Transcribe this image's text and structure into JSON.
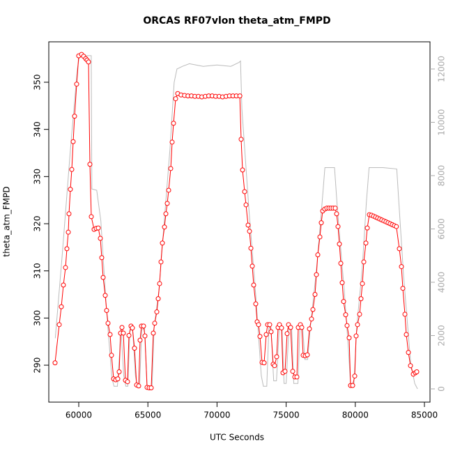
{
  "chart_data": {
    "type": "line",
    "title": "ORCAS RF07vlon theta_atm_FMPD",
    "xlabel": "UTC Seconds",
    "ylabel": "theta_atm_FMPD",
    "xlim": [
      57833,
      85403
    ],
    "ylim": [
      282.17,
      358.57
    ],
    "y2lim": [
      -497,
      13020
    ],
    "xticks": [
      60000,
      65000,
      70000,
      75000,
      80000,
      85000
    ],
    "yticks": [
      290,
      300,
      310,
      320,
      330,
      340,
      350
    ],
    "y2ticks": [
      0,
      2000,
      4000,
      6000,
      8000,
      10000,
      12000
    ],
    "series": [
      {
        "color": "#ff0000",
        "marker": "circle",
        "x": [
          58286,
          58589,
          58740,
          58891,
          59042,
          59143,
          59244,
          59294,
          59395,
          59496,
          59597,
          59698,
          59849,
          60000,
          60202,
          60353,
          60504,
          60605,
          60706,
          60806,
          60907,
          61109,
          61260,
          61411,
          61562,
          61663,
          61764,
          61915,
          62016,
          62117,
          62268,
          62369,
          62520,
          62671,
          62823,
          62923,
          63024,
          63125,
          63226,
          63377,
          63528,
          63629,
          63780,
          63881,
          64032,
          64183,
          64335,
          64435,
          64536,
          64687,
          64788,
          64940,
          65091,
          65242,
          65393,
          65494,
          65645,
          65746,
          65847,
          65948,
          66048,
          66199,
          66300,
          66401,
          66502,
          66653,
          66754,
          66855,
          67006,
          67157,
          67400,
          67650,
          67900,
          68150,
          68400,
          68650,
          68900,
          69150,
          69400,
          69650,
          69900,
          70150,
          70400,
          70650,
          70900,
          71150,
          71400,
          71650,
          71744,
          71845,
          71996,
          72097,
          72248,
          72349,
          72450,
          72550,
          72651,
          72802,
          72903,
          73004,
          73105,
          73256,
          73407,
          73558,
          73659,
          73810,
          73911,
          74062,
          74163,
          74315,
          74415,
          74516,
          74667,
          74768,
          74919,
          75071,
          75171,
          75323,
          75474,
          75625,
          75776,
          75877,
          76028,
          76129,
          76230,
          76381,
          76532,
          76683,
          76835,
          76935,
          77087,
          77188,
          77288,
          77440,
          77540,
          77641,
          77792,
          77944,
          78095,
          78246,
          78397,
          78548,
          78649,
          78750,
          78851,
          78952,
          79052,
          79153,
          79304,
          79405,
          79556,
          79657,
          79808,
          79960,
          80060,
          80161,
          80312,
          80413,
          80514,
          80615,
          80766,
          80867,
          81018,
          81170,
          81320,
          81470,
          81620,
          81770,
          81920,
          82070,
          82220,
          82370,
          82520,
          82670,
          82820,
          82970,
          83185,
          83337,
          83438,
          83589,
          83690,
          83841,
          83992,
          84194,
          84345,
          84446
        ],
        "values": [
          290.5,
          298.6,
          302.4,
          307.0,
          310.7,
          314.7,
          318.2,
          322.1,
          327.3,
          331.5,
          337.4,
          342.8,
          349.6,
          355.6,
          355.9,
          355.5,
          355.0,
          354.7,
          354.3,
          332.6,
          321.5,
          318.8,
          319.0,
          319.1,
          316.9,
          312.8,
          308.6,
          304.8,
          301.6,
          298.9,
          296.5,
          292.1,
          287.1,
          286.9,
          287.1,
          288.6,
          296.8,
          298.0,
          296.8,
          286.8,
          286.5,
          296.3,
          298.3,
          297.9,
          293.6,
          285.8,
          285.6,
          295.3,
          298.3,
          298.3,
          296.2,
          285.3,
          285.2,
          285.2,
          296.8,
          298.9,
          301.3,
          304.1,
          307.3,
          311.9,
          315.9,
          319.3,
          322.1,
          324.3,
          327.1,
          331.7,
          337.3,
          341.3,
          346.5,
          347.6,
          347.3,
          347.2,
          347.1,
          347.1,
          347.0,
          347.0,
          346.9,
          347.0,
          347.1,
          347.1,
          347.0,
          347.0,
          346.9,
          347.0,
          347.1,
          347.1,
          347.1,
          347.1,
          337.9,
          331.4,
          326.8,
          324.0,
          319.7,
          318.4,
          314.8,
          311.0,
          307.0,
          303.0,
          299.2,
          298.6,
          296.1,
          290.6,
          290.5,
          296.5,
          298.6,
          298.6,
          297.1,
          290.2,
          289.9,
          291.8,
          298.0,
          298.6,
          297.9,
          288.4,
          288.7,
          296.7,
          298.6,
          298.0,
          288.7,
          287.5,
          287.5,
          298.0,
          298.6,
          298.0,
          292.1,
          292.0,
          292.2,
          297.7,
          299.8,
          301.8,
          305.0,
          309.2,
          313.4,
          317.2,
          320.2,
          322.7,
          323.1,
          323.3,
          323.3,
          323.3,
          323.3,
          323.3,
          322.1,
          319.4,
          315.7,
          311.6,
          307.5,
          303.5,
          300.7,
          298.4,
          295.8,
          285.7,
          285.7,
          287.7,
          296.2,
          298.6,
          300.8,
          304.1,
          307.3,
          311.9,
          315.9,
          319.1,
          321.9,
          321.8,
          321.6,
          321.4,
          321.2,
          321.0,
          320.8,
          320.6,
          320.4,
          320.2,
          320.0,
          319.8,
          319.6,
          319.4,
          314.7,
          310.9,
          306.3,
          300.8,
          296.5,
          292.7,
          289.9,
          288.1,
          288.4,
          288.6
        ]
      },
      {
        "color": "#bbbbbb",
        "axis": "y2",
        "x": [
          58300,
          58800,
          59400,
          59900,
          60050,
          60900,
          60950,
          61300,
          61600,
          62000,
          62400,
          62550,
          62800,
          62950,
          63050,
          63250,
          63400,
          63550,
          63700,
          63900,
          64100,
          64250,
          64400,
          64550,
          64750,
          64950,
          65300,
          65450,
          65800,
          66200,
          66600,
          66900,
          67100,
          67500,
          68000,
          69000,
          70000,
          71000,
          71600,
          71700,
          71800,
          72300,
          72800,
          73200,
          73350,
          73600,
          73750,
          73900,
          74100,
          74300,
          74500,
          74700,
          74850,
          75000,
          75200,
          75400,
          75550,
          75850,
          76000,
          76200,
          76350,
          76550,
          76750,
          77200,
          77600,
          77800,
          78500,
          78700,
          79200,
          79500,
          79650,
          79900,
          80100,
          80500,
          80800,
          81000,
          82000,
          83000,
          83150,
          83500,
          84000,
          84300,
          84500
        ],
        "values": [
          1900,
          5000,
          9000,
          12000,
          12500,
          12500,
          7500,
          7450,
          6300,
          3000,
          400,
          100,
          100,
          1300,
          2300,
          500,
          100,
          100,
          2200,
          2200,
          500,
          50,
          50,
          2200,
          2300,
          50,
          50,
          2300,
          3700,
          6400,
          9000,
          11500,
          12000,
          12100,
          12200,
          12100,
          12150,
          12100,
          12250,
          12300,
          10500,
          6800,
          3500,
          500,
          100,
          100,
          2300,
          2300,
          300,
          300,
          2300,
          2300,
          200,
          200,
          2300,
          2300,
          200,
          200,
          2300,
          2300,
          1100,
          1100,
          2300,
          4500,
          7000,
          8300,
          8300,
          6800,
          3700,
          1500,
          200,
          200,
          2300,
          4500,
          7000,
          8300,
          8300,
          8250,
          7000,
          4200,
          1000,
          200,
          0
        ]
      }
    ]
  }
}
